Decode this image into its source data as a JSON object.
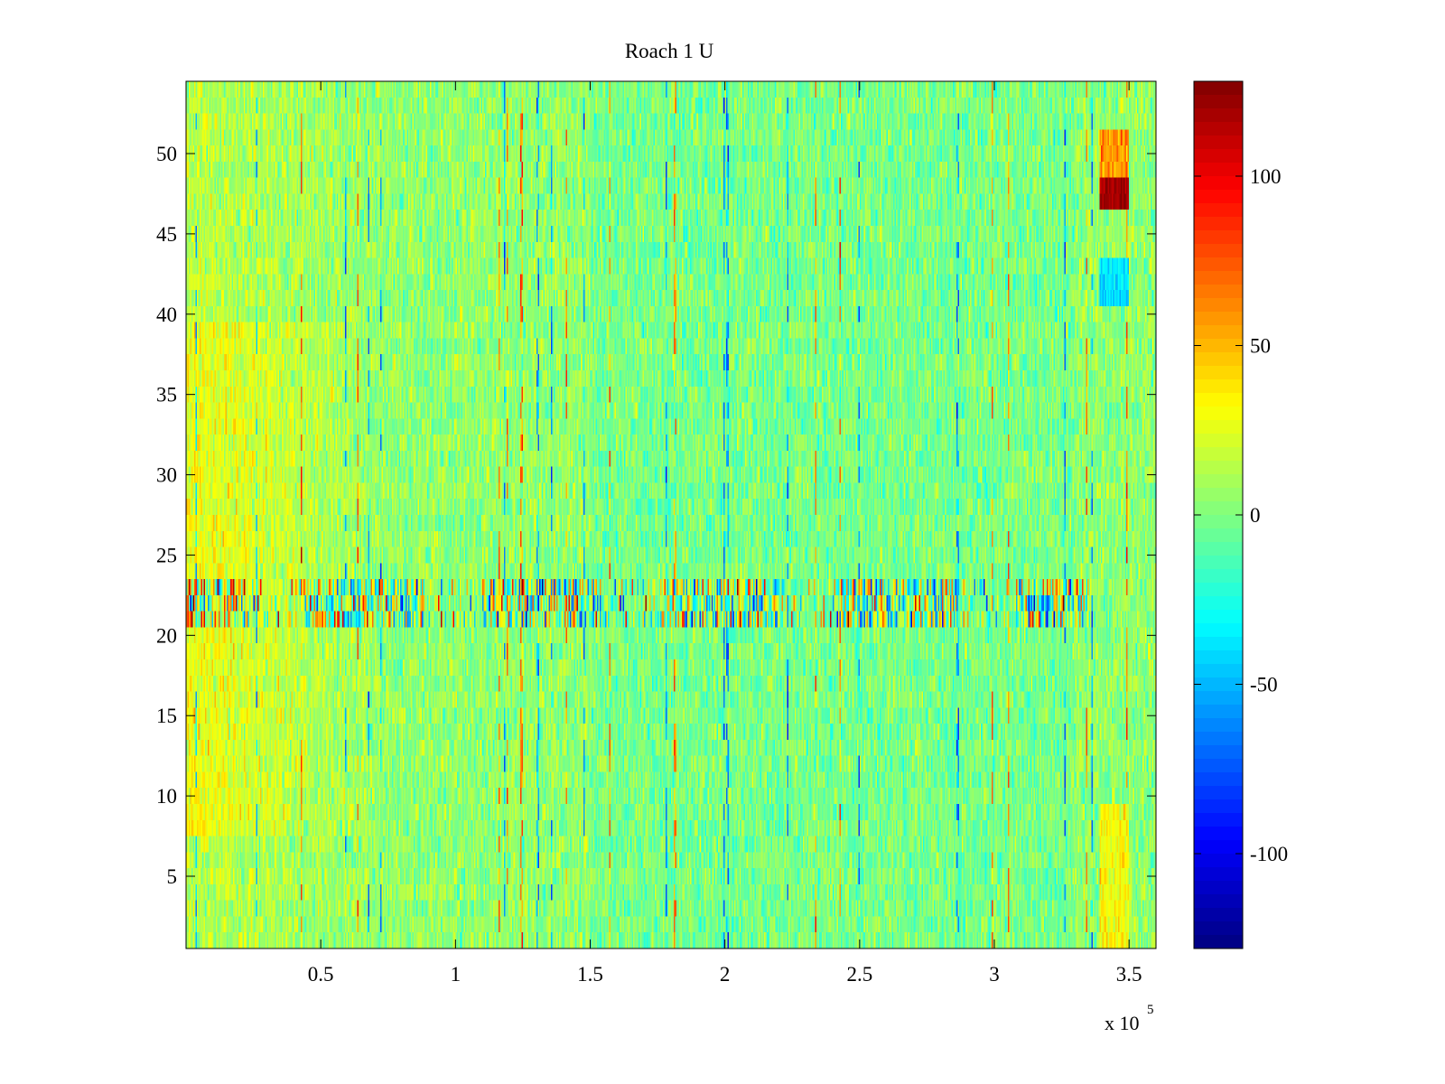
{
  "chart_data": {
    "type": "heatmap",
    "title": "Roach 1 U",
    "xlabel": "",
    "ylabel": "",
    "x_exponent_label": "x 10",
    "x_exponent_power": "5",
    "xlim": [
      0,
      360000
    ],
    "ylim": [
      0.5,
      54.5
    ],
    "rows": 54,
    "x_ticks": [
      50000,
      100000,
      150000,
      200000,
      250000,
      300000,
      350000
    ],
    "x_tick_labels": [
      "0.5",
      "1",
      "1.5",
      "2",
      "2.5",
      "3",
      "3.5"
    ],
    "y_ticks": [
      5,
      10,
      15,
      20,
      25,
      30,
      35,
      40,
      45,
      50
    ],
    "y_tick_labels": [
      "5",
      "10",
      "15",
      "20",
      "25",
      "30",
      "35",
      "40",
      "45",
      "50"
    ],
    "colorbar": {
      "range": [
        -128,
        128
      ],
      "ticks": [
        -100,
        -50,
        0,
        50,
        100
      ],
      "tick_labels": [
        "-100",
        "-50",
        "0",
        "50",
        "100"
      ],
      "colormap": "jet"
    },
    "features": [
      {
        "desc": "warm early region",
        "x_range": [
          0,
          70000
        ],
        "y_range": [
          10,
          38
        ],
        "level": 30
      },
      {
        "desc": "high-variance band",
        "x_range": [
          0,
          335000
        ],
        "y_range": [
          21,
          23
        ],
        "level": 0
      },
      {
        "desc": "hot spot",
        "x_range": [
          339000,
          350000
        ],
        "y_range": [
          47,
          48
        ],
        "level": 120
      },
      {
        "desc": "warm patch",
        "x_range": [
          339000,
          350000
        ],
        "y_range": [
          49,
          50
        ],
        "level": 60
      },
      {
        "desc": "cool patch",
        "x_range": [
          339000,
          350000
        ],
        "y_range": [
          41,
          43
        ],
        "level": -40
      }
    ]
  }
}
